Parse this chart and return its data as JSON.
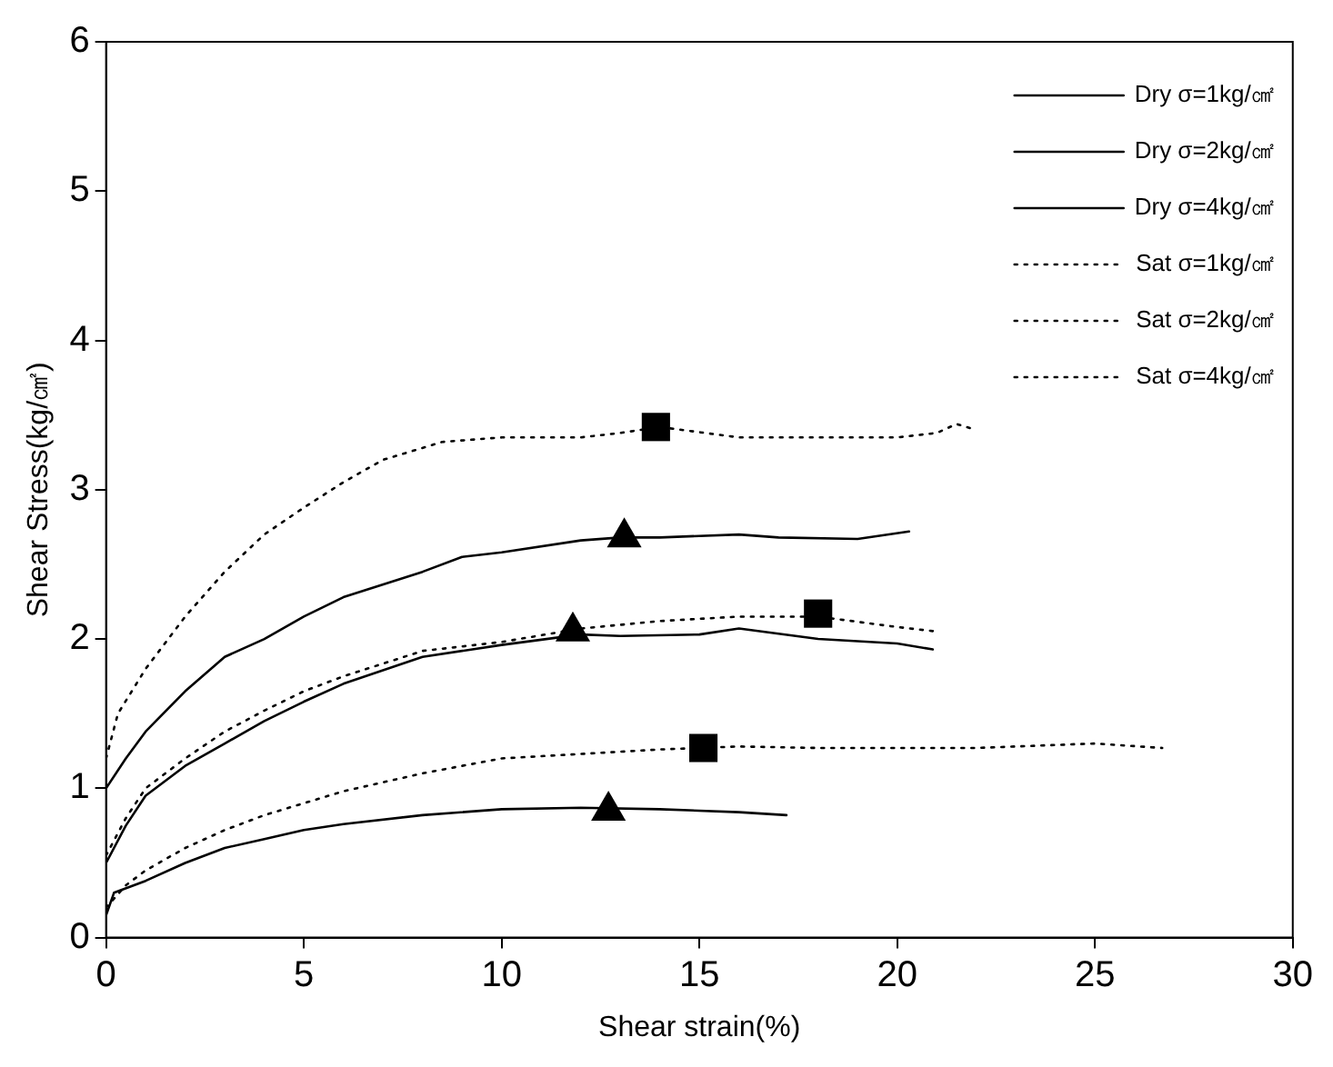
{
  "chart_data": {
    "type": "line",
    "xlabel": "Shear strain(%)",
    "ylabel": "Shear Stress(kg/㎠)",
    "xlim": [
      0,
      30
    ],
    "xticks": [
      0,
      5,
      10,
      15,
      20,
      25,
      30
    ],
    "ylim": [
      0,
      6
    ],
    "yticks": [
      0,
      1,
      2,
      3,
      4,
      5,
      6
    ],
    "grid": false,
    "legend": "top right",
    "marker": "none",
    "series": [
      {
        "name": "Dry σ=1kg/㎠",
        "color": "#000000",
        "line_style": "solid",
        "x": [
          0,
          0.2,
          1,
          2,
          3,
          4,
          5,
          6,
          8,
          10,
          12,
          14,
          16,
          17.2
        ],
        "values": [
          0.15,
          0.3,
          0.38,
          0.5,
          0.6,
          0.66,
          0.72,
          0.76,
          0.82,
          0.86,
          0.87,
          0.86,
          0.84,
          0.82
        ]
      },
      {
        "name": "Dry σ=2kg/㎠",
        "color": "#000000",
        "line_style": "solid",
        "x": [
          0,
          0.5,
          1,
          2,
          3,
          4,
          5,
          6,
          8,
          10,
          12,
          13,
          15,
          16,
          18,
          20,
          20.9
        ],
        "values": [
          0.5,
          0.75,
          0.95,
          1.15,
          1.3,
          1.45,
          1.58,
          1.7,
          1.88,
          1.96,
          2.03,
          2.02,
          2.03,
          2.07,
          2.0,
          1.97,
          1.93
        ]
      },
      {
        "name": "Dry σ=4kg/㎠",
        "color": "#000000",
        "line_style": "solid",
        "x": [
          0,
          0.5,
          1,
          2,
          3,
          4,
          5,
          6,
          8,
          9,
          10,
          12,
          13,
          14,
          16,
          17,
          19,
          20.3
        ],
        "values": [
          1.0,
          1.2,
          1.38,
          1.65,
          1.88,
          2.0,
          2.15,
          2.28,
          2.45,
          2.55,
          2.58,
          2.66,
          2.68,
          2.68,
          2.7,
          2.68,
          2.67,
          2.72
        ]
      },
      {
        "name": "Sat σ=1kg/㎠",
        "color": "#000000",
        "line_style": "dotted",
        "x": [
          0,
          0.5,
          1,
          2,
          3,
          4,
          5,
          6,
          8,
          10,
          12,
          14,
          16,
          18,
          20,
          22,
          25,
          26.7
        ],
        "values": [
          0.2,
          0.35,
          0.45,
          0.6,
          0.72,
          0.82,
          0.9,
          0.98,
          1.1,
          1.2,
          1.23,
          1.26,
          1.28,
          1.27,
          1.27,
          1.27,
          1.3,
          1.27
        ]
      },
      {
        "name": "Sat σ=2kg/㎠",
        "color": "#000000",
        "line_style": "dotted",
        "x": [
          0,
          0.5,
          1,
          2,
          3,
          4,
          5,
          6,
          8,
          10,
          12,
          14,
          16,
          18,
          20,
          21
        ],
        "values": [
          0.55,
          0.8,
          1.0,
          1.2,
          1.38,
          1.52,
          1.65,
          1.75,
          1.92,
          1.98,
          2.07,
          2.12,
          2.15,
          2.15,
          2.08,
          2.05
        ]
      },
      {
        "name": "Sat σ=4kg/㎠",
        "color": "#000000",
        "line_style": "dotted",
        "x": [
          0,
          0.3,
          1,
          2,
          3,
          4,
          5,
          6,
          7,
          8.5,
          10,
          12,
          13,
          14,
          16,
          18,
          20,
          21,
          21.5,
          22
        ],
        "values": [
          1.2,
          1.5,
          1.8,
          2.15,
          2.45,
          2.7,
          2.88,
          3.05,
          3.2,
          3.32,
          3.35,
          3.35,
          3.38,
          3.42,
          3.35,
          3.35,
          3.35,
          3.38,
          3.44,
          3.4
        ]
      },
      {
        "type": "scatter",
        "marker": "triangle",
        "color": "#000000",
        "x": [
          12.7,
          11.8,
          13.1
        ],
        "values": [
          0.85,
          2.05,
          2.68
        ]
      },
      {
        "type": "scatter",
        "marker": "square",
        "color": "#000000",
        "x": [
          15.1,
          18,
          13.9
        ],
        "values": [
          1.27,
          2.17,
          3.42
        ]
      }
    ]
  }
}
